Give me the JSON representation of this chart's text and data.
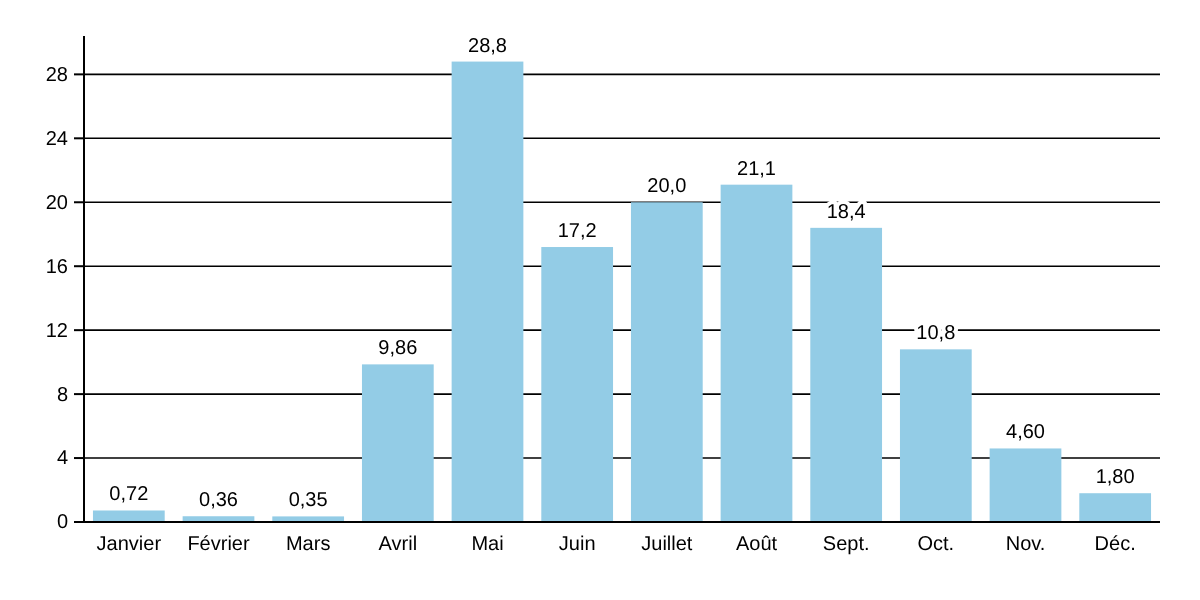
{
  "chart_data": {
    "type": "bar",
    "categories": [
      "Janvier",
      "Février",
      "Mars",
      "Avril",
      "Mai",
      "Juin",
      "Juillet",
      "Août",
      "Sept.",
      "Oct.",
      "Nov.",
      "Déc."
    ],
    "values": [
      0.72,
      0.36,
      0.35,
      9.86,
      28.8,
      17.2,
      20.0,
      21.1,
      18.4,
      10.8,
      4.6,
      1.8
    ],
    "value_labels": [
      "0,72",
      "0,36",
      "0,35",
      "9,86",
      "28,8",
      "17,2",
      "20,0",
      "21,1",
      "18,4",
      "10,8",
      "4,60",
      "1,80"
    ],
    "color": "#93cce6",
    "ylim": [
      0,
      30.4
    ],
    "yticks": [
      0,
      4,
      8,
      12,
      16,
      20,
      24,
      28
    ],
    "grid": "y"
  }
}
